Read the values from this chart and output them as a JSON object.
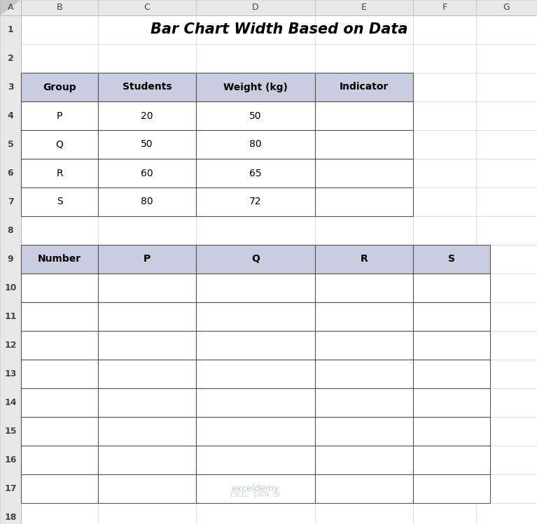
{
  "title": "Bar Chart Width Based on Data",
  "bg_color": "#ffffff",
  "header_row_bg": "#d0d4e8",
  "excel_col_header_bg": "#e8e8e8",
  "excel_row_header_bg": "#e8e8e8",
  "grid_line_color": "#d0d0d0",
  "border_color": "#000000",
  "table_border_color": "#555555",
  "text_color": "#000000",
  "header_text_color": "#000000",
  "cell_text_color": "#404040",
  "watermark_color": "#aab0cc",
  "col_header_bg": "#c8cde0",
  "excel_col_labels": [
    "A",
    "B",
    "C",
    "D",
    "E",
    "F",
    "G"
  ],
  "excel_num_rows": 18,
  "table1_headers": [
    "Group",
    "Students",
    "Weight (kg)",
    "Indicator"
  ],
  "table1_rows": [
    [
      "P",
      "20",
      "50",
      ""
    ],
    [
      "Q",
      "50",
      "80",
      ""
    ],
    [
      "R",
      "60",
      "65",
      ""
    ],
    [
      "S",
      "80",
      "72",
      ""
    ]
  ],
  "table2_headers": [
    "Number",
    "P",
    "Q",
    "R",
    "S"
  ],
  "table2_num_data_rows": 8,
  "watermark_text": "exceldemy",
  "watermark_subtext": "EXCEL · DATA · BI"
}
